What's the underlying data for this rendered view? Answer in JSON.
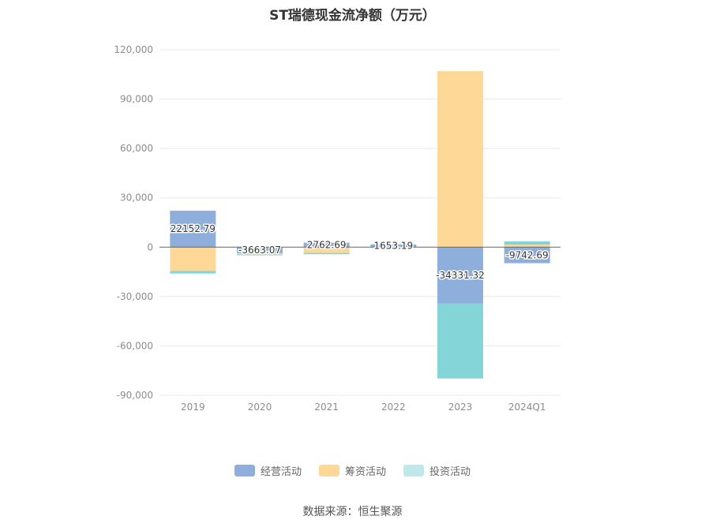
{
  "chart_data": {
    "type": "bar",
    "stacked": true,
    "title": "ST瑞德现金流净额（万元）",
    "categories": [
      "2019",
      "2020",
      "2021",
      "2022",
      "2023",
      "2024Q1"
    ],
    "series": [
      {
        "name": "经营活动",
        "color": "#8eaedb",
        "values": [
          22152.79,
          -3663.07,
          2762.69,
          1653.19,
          -34331.32,
          -9742.69
        ]
      },
      {
        "name": "筹资活动",
        "color": "#fed897",
        "values": [
          -14500,
          -800,
          -3500,
          0,
          107000,
          1500
        ]
      },
      {
        "name": "投资活动",
        "color": "#84d5d8",
        "values": [
          -1500,
          -200,
          -800,
          0,
          -45500,
          2000
        ]
      }
    ],
    "data_labels": [
      "22152.79",
      "-3663.07",
      "2762.69",
      "1653.19",
      "-34331.32",
      "-9742.69"
    ],
    "ylim": [
      -90000,
      120000
    ],
    "yticks": [
      -90000,
      -60000,
      -30000,
      0,
      30000,
      60000,
      90000,
      120000
    ],
    "ytick_labels": [
      "-90,000",
      "-60,000",
      "-30,000",
      "0",
      "30,000",
      "60,000",
      "90,000",
      "120,000"
    ],
    "grid": true,
    "legend_position": "bottom"
  },
  "legend": {
    "items": [
      "经营活动",
      "筹资活动",
      "投资活动"
    ]
  },
  "source": "数据来源：恒生聚源"
}
